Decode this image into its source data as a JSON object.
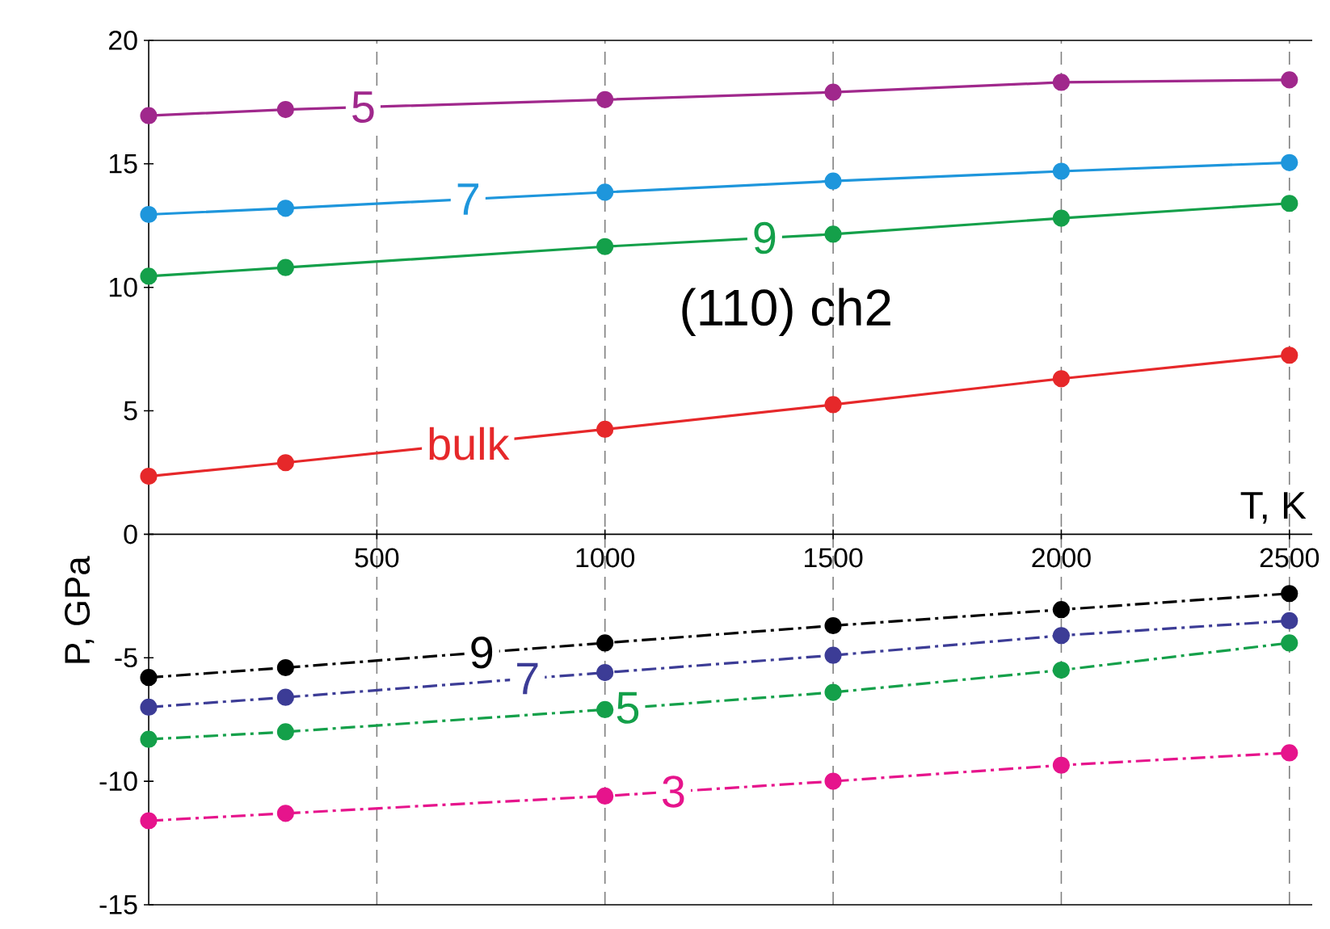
{
  "chart_data": {
    "type": "line",
    "xlabel": "T, K",
    "ylabel": "P, GPa",
    "annotations": [
      "(110) ch2"
    ],
    "xlim": [
      0,
      2550
    ],
    "ylim": [
      -15,
      20
    ],
    "xticks": [
      500,
      1000,
      1500,
      2000,
      2500
    ],
    "yticks": [
      -15,
      -10,
      -5,
      0,
      5,
      10,
      15,
      20
    ],
    "grid": "x",
    "marker": "circle",
    "x": [
      0,
      300,
      1000,
      1500,
      2000,
      2500
    ],
    "series": [
      {
        "name": "5",
        "color": "#a0288c",
        "line_style": "solid",
        "values": [
          16.95,
          17.2,
          17.6,
          17.9,
          18.3,
          18.4
        ]
      },
      {
        "name": "7",
        "color": "#1e96dc",
        "line_style": "solid",
        "values": [
          12.95,
          13.2,
          13.85,
          14.3,
          14.7,
          15.05
        ]
      },
      {
        "name": "9",
        "color": "#14a04a",
        "line_style": "solid",
        "values": [
          10.45,
          10.8,
          11.65,
          12.15,
          12.8,
          13.4
        ]
      },
      {
        "name": "bulk",
        "color": "#e6282a",
        "line_style": "solid",
        "values": [
          2.35,
          2.9,
          4.25,
          5.25,
          6.3,
          7.25
        ]
      },
      {
        "name": "9",
        "color": "#000000",
        "line_style": "dashdot",
        "values": [
          -5.8,
          -5.4,
          -4.4,
          -3.7,
          -3.05,
          -2.4
        ]
      },
      {
        "name": "7",
        "color": "#3c3c96",
        "line_style": "dashdot",
        "values": [
          -7.0,
          -6.6,
          -5.6,
          -4.9,
          -4.1,
          -3.5
        ]
      },
      {
        "name": "5",
        "color": "#14a04a",
        "line_style": "dashdot",
        "values": [
          -8.3,
          -8.0,
          -7.1,
          -6.4,
          -5.5,
          -4.4
        ]
      },
      {
        "name": "3",
        "color": "#e6148c",
        "line_style": "dashdot",
        "values": [
          -11.6,
          -11.3,
          -10.6,
          -10.0,
          -9.35,
          -8.85
        ]
      }
    ]
  }
}
